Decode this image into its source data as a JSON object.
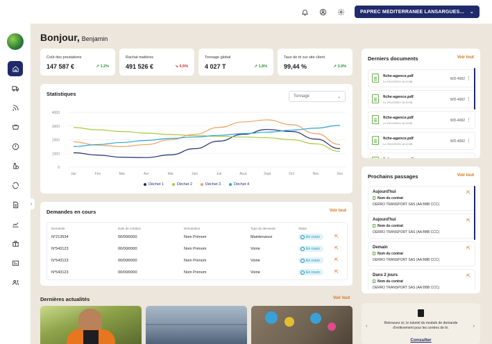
{
  "topbar": {
    "org_label": "PAPREC MEDITERRANEE LANSARGUES...",
    "icons": [
      "bell-icon",
      "user-circle-icon",
      "gear-icon"
    ]
  },
  "sidebar": {
    "items": [
      {
        "name": "home-icon",
        "active": true
      },
      {
        "name": "truck-icon"
      },
      {
        "name": "rss-icon"
      },
      {
        "name": "container-icon"
      },
      {
        "name": "alert-icon"
      },
      {
        "name": "bottles-icon"
      },
      {
        "name": "recycle-icon"
      },
      {
        "name": "document-icon"
      },
      {
        "name": "chart-icon"
      },
      {
        "name": "package-icon"
      },
      {
        "name": "id-card-icon"
      },
      {
        "name": "users-icon"
      }
    ]
  },
  "greeting": {
    "hello": "Bonjour,",
    "name": "Benjamin"
  },
  "kpis": [
    {
      "label": "Coût des prestations",
      "value": "147 587 €",
      "trend": "1.2%",
      "direction": "up"
    },
    {
      "label": "Rachat matières",
      "value": "491 526 €",
      "trend": "0.5%",
      "direction": "down"
    },
    {
      "label": "Tonnage global",
      "value": "4 027 T",
      "trend": "1.8%",
      "direction": "up"
    },
    {
      "label": "Taux de tri sur site client",
      "value": "99,44 %",
      "trend": "3.9%",
      "direction": "up"
    }
  ],
  "stats": {
    "title": "Statistiques",
    "select_value": "Tonnage"
  },
  "chart_data": {
    "type": "line",
    "categories": [
      "Jan",
      "Fev",
      "Mar",
      "Avr",
      "Mai",
      "Juin",
      "Juil",
      "Aout",
      "Sept",
      "Oct",
      "Nov",
      "Dec"
    ],
    "yticks": [
      0,
      1000,
      2000,
      3000,
      4000
    ],
    "ylim": [
      0,
      4000
    ],
    "series": [
      {
        "name": "Déchet 1",
        "color": "#1f2a6b",
        "values": [
          1050,
          880,
          720,
          700,
          900,
          1350,
          1900,
          2400,
          2750,
          2600,
          2050,
          1350
        ]
      },
      {
        "name": "Déchet 2",
        "color": "#a8c93a",
        "values": [
          2900,
          2720,
          2600,
          2480,
          2380,
          2300,
          2250,
          2200,
          2150,
          2000,
          1700,
          1150
        ]
      },
      {
        "name": "Déchet 3",
        "color": "#f0a060",
        "values": [
          1850,
          1600,
          1500,
          1650,
          2000,
          2400,
          2900,
          3300,
          3450,
          3100,
          2450,
          1650
        ]
      },
      {
        "name": "Déchet 4",
        "color": "#2aa3cf",
        "values": [
          1500,
          1650,
          1800,
          1950,
          2100,
          2200,
          2320,
          2450,
          2550,
          2700,
          2850,
          3050
        ]
      }
    ]
  },
  "requests": {
    "title": "Demandes en cours",
    "see_all": "Voir tout",
    "headers": [
      "Demande",
      "Date de création",
      "Demandeur",
      "Type de demande",
      "Statut"
    ],
    "rows": [
      {
        "id": "N°213534",
        "date": "00/00/0000",
        "requester": "Nom Prénom",
        "type": "Maintenance",
        "status": "En cours"
      },
      {
        "id": "N°543123",
        "date": "00/00/0000",
        "requester": "Nom Prénom",
        "type": "Voirie",
        "status": "En cours"
      },
      {
        "id": "N°543123",
        "date": "00/00/0000",
        "requester": "Nom Prénom",
        "type": "Voirie",
        "status": "En cours"
      },
      {
        "id": "N°543123",
        "date": "00/00/0000",
        "requester": "Nom Prénom",
        "type": "Voirie",
        "status": "En cours"
      }
    ]
  },
  "documents": {
    "title": "Derniers documents",
    "see_all": "Voir tout",
    "items": [
      {
        "name": "fiche-agence.pdf",
        "date": "Le 20/12/2024 16:10:58",
        "ref": "WD-4682"
      },
      {
        "name": "fiche-agence.pdf",
        "date": "Le 20/12/2024 16:10:58",
        "ref": "WD-4682"
      },
      {
        "name": "fiche-agence.pdf",
        "date": "Le 20/12/2024 16:10:58",
        "ref": "WD-4682"
      },
      {
        "name": "fiche-agence.pdf",
        "date": "Le 20/12/2024 16:10:58",
        "ref": "WD-4682"
      },
      {
        "name": "fiche-agence.pdf",
        "date": "",
        "ref": ""
      }
    ]
  },
  "passages": {
    "title": "Prochains passages",
    "see_all": "Voir tout",
    "items": [
      {
        "when": "Aujourd'hui",
        "contract": "Nom du contrat",
        "company": "DERRO TRANSPORT SAS (AA BBB CCC)"
      },
      {
        "when": "Aujourd'hui",
        "contract": "Nom du contrat",
        "company": "DERRO TRANSPORT SAS (AA BBB CCC)"
      },
      {
        "when": "Demain",
        "contract": "Nom du contrat",
        "company": "DERRO TRANSPORT SAS (AA BBB CCC)"
      },
      {
        "when": "Dans 2 jours",
        "contract": "Nom du contrat",
        "company": "DERRO TRANSPORT SAS (AA BBB CCC)"
      }
    ]
  },
  "news": {
    "title": "Dernières actualités",
    "see_all": "Voir tout"
  },
  "tutorial": {
    "text": "Retrouvez ici, le tutoriel du module de demande d'enlèvement pour les centres de tri.",
    "link": "Consulter"
  }
}
